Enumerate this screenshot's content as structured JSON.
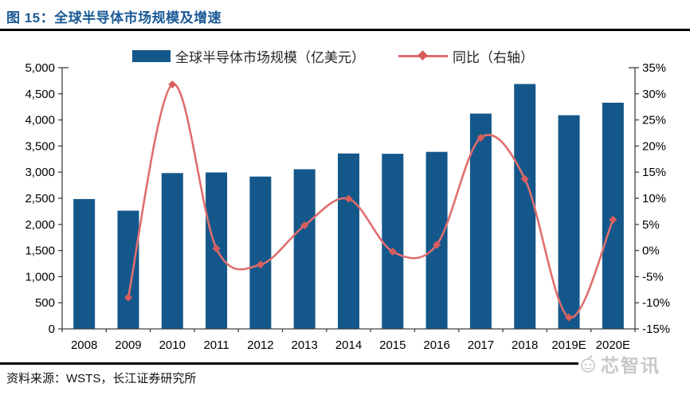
{
  "title": "图 15：全球半导体市场规模及增速",
  "source": "资料来源：WSTS，长江证券研究所",
  "watermark": "芯智讯",
  "colors": {
    "bar": "#14578A",
    "line": "#E06E6E",
    "line_marker": "#D85C5C",
    "title_text": "#1A5A96",
    "axis": "#404040",
    "tick_text": "#000000",
    "rule": "#000000",
    "watermark_text": "#C8C8C8"
  },
  "chart_data": {
    "type": "bar+line",
    "title": "全球半导体市场规模及增速",
    "categories": [
      "2008",
      "2009",
      "2010",
      "2011",
      "2012",
      "2013",
      "2014",
      "2015",
      "2016",
      "2017",
      "2018",
      "2019E",
      "2020E"
    ],
    "series": [
      {
        "name": "全球半导体市场规模（亿美元）",
        "type": "bar",
        "axis": "left",
        "values": [
          2486,
          2263,
          2983,
          2995,
          2916,
          3056,
          3358,
          3352,
          3389,
          4122,
          4688,
          4090,
          4330
        ]
      },
      {
        "name": "同比（右轴）",
        "type": "line",
        "axis": "right",
        "values": [
          null,
          -9.0,
          31.8,
          0.4,
          -2.7,
          4.8,
          9.9,
          -0.2,
          1.1,
          21.6,
          13.7,
          -12.8,
          5.9
        ]
      }
    ],
    "left_axis": {
      "min": 0,
      "max": 5000,
      "step": 500,
      "tick_labels": [
        "0",
        "500",
        "1,000",
        "1,500",
        "2,000",
        "2,500",
        "3,000",
        "3,500",
        "4,000",
        "4,500",
        "5,000"
      ]
    },
    "right_axis": {
      "min": -15,
      "max": 35,
      "step": 5,
      "tick_labels": [
        "-15%",
        "-10%",
        "-5%",
        "0%",
        "5%",
        "10%",
        "15%",
        "20%",
        "25%",
        "30%",
        "35%"
      ]
    },
    "legend_position": "top",
    "grid": false
  }
}
